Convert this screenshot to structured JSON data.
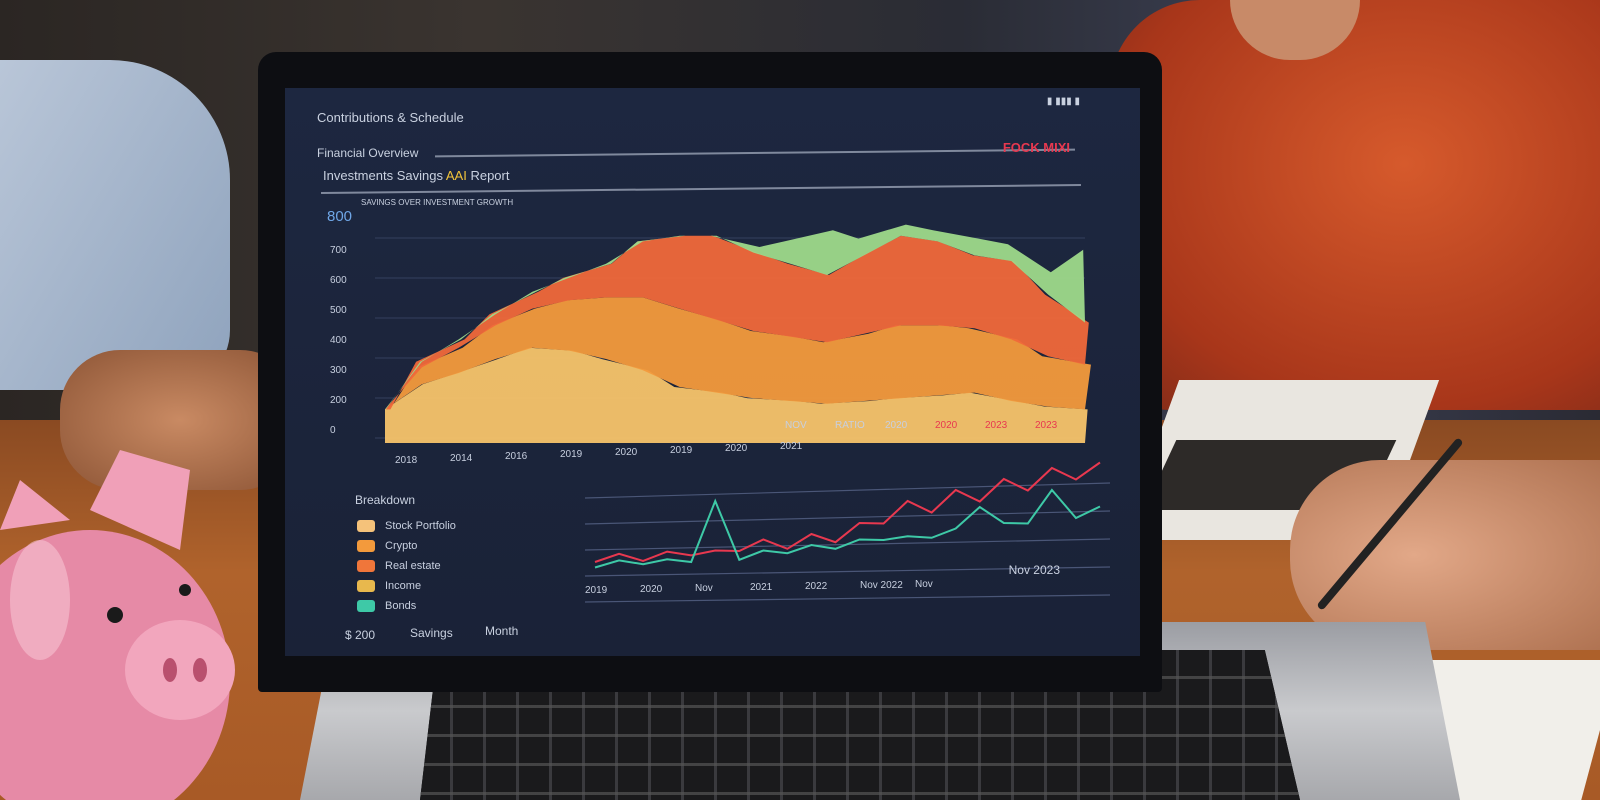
{
  "screen": {
    "app_title": "Contributions & Schedule",
    "status_icons": "▮ ▮▮▮ ▮",
    "section_title": "Financial Overview",
    "subtitle_a": "Investments Savings",
    "subtitle_highlight": "AAI",
    "subtitle_b": "Report",
    "alert_label": "FOCK MIXI",
    "chart_caption": "SAVINGS OVER INVESTMENT GROWTH",
    "y_top": "800",
    "y_labels": [
      "700",
      "600",
      "500",
      "400",
      "300",
      "200",
      "0"
    ],
    "x_labels_upper": [
      "NOV",
      "RATIO",
      "2020",
      "2020",
      "2023",
      "2023"
    ],
    "x_labels_lower": [
      "2018",
      "2014",
      "2016",
      "2019",
      "2020",
      "2019",
      "2020",
      "2021"
    ],
    "legend_title": "Breakdown",
    "legend_items": [
      {
        "label": "Stock Portfolio",
        "color": "#f5c27a"
      },
      {
        "label": "Crypto",
        "color": "#f39a3c"
      },
      {
        "label": "Real estate",
        "color": "#f0763a"
      },
      {
        "label": "Income",
        "color": "#e8b84d"
      },
      {
        "label": "Bonds",
        "color": "#3ec9a7"
      }
    ],
    "lower_x_labels": [
      "2019",
      "2020",
      "Nov",
      "2021",
      "2022",
      "Nov 2022",
      "Nov"
    ],
    "lower_right_label": "Nov 2023",
    "footer_left": "$ 200",
    "footer_mid": [
      "Savings",
      "Month"
    ],
    "colors": {
      "accent_red": "#e8384f",
      "accent_yellow": "#f2c43a",
      "screen_bg": "#1b2439"
    }
  },
  "chart_data": {
    "type": "area",
    "series": [
      {
        "color": "#f7c46a",
        "values": [
          120,
          210,
          250,
          300,
          340,
          330,
          300,
          260,
          200,
          180,
          160,
          150,
          140,
          150,
          160,
          170,
          180,
          150,
          130,
          120
        ]
      },
      {
        "color": "#f39a3c",
        "values": [
          0,
          60,
          90,
          120,
          140,
          180,
          220,
          260,
          280,
          260,
          240,
          230,
          220,
          240,
          260,
          250,
          230,
          220,
          180,
          160
        ]
      },
      {
        "color": "#f0683a",
        "values": [
          0,
          20,
          30,
          40,
          60,
          80,
          120,
          200,
          260,
          300,
          280,
          260,
          240,
          280,
          320,
          300,
          260,
          280,
          220,
          150
        ]
      },
      {
        "color": "#9ed98a",
        "values": [
          0,
          0,
          0,
          0,
          0,
          0,
          0,
          0,
          0,
          0,
          20,
          80,
          160,
          60,
          40,
          40,
          60,
          60,
          80,
          260
        ]
      }
    ],
    "line_series": [
      {
        "color": "#e8384f",
        "values": [
          10,
          12,
          11,
          14,
          16,
          15,
          20,
          25,
          22,
          30,
          28,
          40,
          45,
          60,
          55,
          70,
          65,
          80,
          75,
          90,
          85,
          95
        ]
      },
      {
        "color": "#3ec9a7",
        "values": [
          5,
          6,
          8,
          7,
          10,
          60,
          12,
          15,
          18,
          20,
          22,
          25,
          30,
          28,
          32,
          35,
          60,
          40,
          45,
          70,
          50,
          55
        ]
      }
    ]
  }
}
